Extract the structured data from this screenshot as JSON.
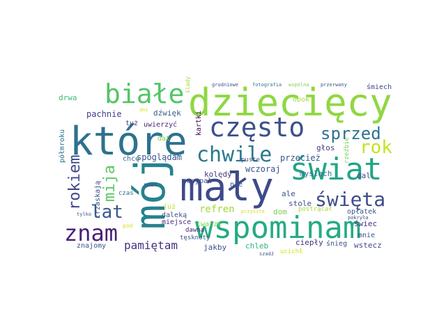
{
  "words": [
    {
      "text": "dziecięcy",
      "color": "#8fd744"
    },
    {
      "text": "białe",
      "color": "#54c568"
    },
    {
      "text": "które",
      "color": "#2c728e"
    },
    {
      "text": "często",
      "color": "#3b518b"
    },
    {
      "text": "mój",
      "color": "#26828e"
    },
    {
      "text": "mały",
      "color": "#3e4a89"
    },
    {
      "text": "świat",
      "color": "#21a685"
    },
    {
      "text": "wspominam",
      "color": "#25ab82"
    },
    {
      "text": "chwile",
      "color": "#2a788e"
    },
    {
      "text": "sprzed",
      "color": "#2c738e"
    },
    {
      "text": "rok",
      "color": "#c8e020"
    },
    {
      "text": "święta",
      "color": "#3e4c8a"
    },
    {
      "text": "znam",
      "color": "#482173"
    },
    {
      "text": "lat",
      "color": "#38588c"
    },
    {
      "text": "rokiem",
      "color": "#3f4889"
    },
    {
      "text": "mija",
      "color": "#5ac864"
    },
    {
      "text": "pamiętam",
      "color": "#46307e"
    },
    {
      "text": "refren",
      "color": "#a2da37"
    },
    {
      "text": "pachnie",
      "color": "#433e85"
    },
    {
      "text": "dźwięk",
      "color": "#375a8c"
    },
    {
      "text": "spoglądam",
      "color": "#3a538b"
    },
    {
      "text": "kolędy",
      "color": "#443a83"
    },
    {
      "text": "wczoraj",
      "color": "#3b528b"
    },
    {
      "text": "przecież",
      "color": "#39558c"
    },
    {
      "text": "myślach",
      "color": "#2c728e"
    },
    {
      "text": "głos",
      "color": "#433d84"
    },
    {
      "text": "dal",
      "color": "#3e4989"
    },
    {
      "text": "drwa",
      "color": "#3fbc73"
    },
    {
      "text": "półmroku",
      "color": "#2d708e"
    },
    {
      "text": "trzaskają",
      "color": "#3b528b"
    },
    {
      "text": "chcę",
      "color": "#31688e"
    },
    {
      "text": "tuż",
      "color": "#424186"
    },
    {
      "text": "uwierzyć",
      "color": "#482878"
    },
    {
      "text": "kartki",
      "color": "#440154"
    },
    {
      "text": "dat",
      "color": "#7ad151"
    },
    {
      "text": "czas",
      "color": "#2e6e8e"
    },
    {
      "text": "smak",
      "color": "#3b528b"
    },
    {
      "text": "już",
      "color": "#bddf26"
    },
    {
      "text": "dawna",
      "color": "#482475"
    },
    {
      "text": "tęsknoty",
      "color": "#3b528b"
    },
    {
      "text": "zasypał",
      "color": "#3e4989"
    },
    {
      "text": "nie",
      "color": "#3b528b"
    },
    {
      "text": "miejsce",
      "color": "#472f7d"
    },
    {
      "text": "daleką",
      "color": "#3b528b"
    },
    {
      "text": "twarze",
      "color": "#7ad151"
    },
    {
      "text": "jakby",
      "color": "#3b528b"
    },
    {
      "text": "chleb",
      "color": "#2db27d"
    },
    {
      "text": "dom",
      "color": "#7ad151"
    },
    {
      "text": "stole",
      "color": "#3b528b"
    },
    {
      "text": "ale",
      "color": "#3b528b"
    },
    {
      "text": "ciepły",
      "color": "#46337e"
    },
    {
      "text": "śnieg",
      "color": "#3b528b"
    },
    {
      "text": "wstecz",
      "color": "#3e4989"
    },
    {
      "text": "mnie",
      "color": "#3b528b"
    },
    {
      "text": "świec",
      "color": "#46327e"
    },
    {
      "text": "opłatek",
      "color": "#3b528b"
    },
    {
      "text": "postrącał",
      "color": "#a5db36"
    },
    {
      "text": "rzeźbie",
      "color": "#7ad151"
    },
    {
      "text": "pokryła",
      "color": "#3e4989"
    },
    {
      "text": "ucichł",
      "color": "#d2e21b"
    },
    {
      "text": "szadź",
      "color": "#3b528b"
    },
    {
      "text": "przyszła",
      "color": "#d2e21b"
    },
    {
      "text": "znajomy",
      "color": "#3b528b"
    },
    {
      "text": "tylko",
      "color": "#3b528b"
    },
    {
      "text": "pod",
      "color": "#d2e21b"
    },
    {
      "text": "puste",
      "color": "#3b528b"
    },
    {
      "text": "obok",
      "color": "#a5db36"
    },
    {
      "text": "grudniowe",
      "color": "#3b528b"
    },
    {
      "text": "fotografia",
      "color": "#2c728e"
    },
    {
      "text": "wspólna",
      "color": "#7ad151"
    },
    {
      "text": "przerwany",
      "color": "#3b528b"
    },
    {
      "text": "śmiech",
      "color": "#3e4989"
    },
    {
      "text": "ślady",
      "color": "#a5db36"
    },
    {
      "text": "dni",
      "color": "#d2e21b"
    }
  ]
}
